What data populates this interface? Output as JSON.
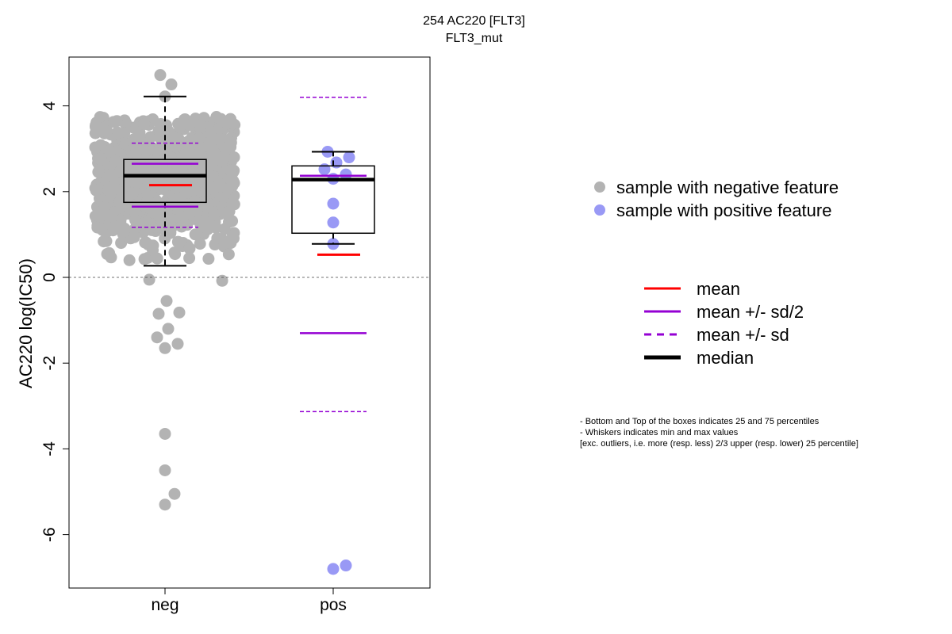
{
  "title": "254 AC220 [FLT3]",
  "subtitle": "FLT3_mut",
  "chart_data": {
    "type": "boxplot",
    "ylabel": "AC220 log(IC50)",
    "xlabel": "",
    "ylim": [
      -7.3,
      5.2
    ],
    "y_ticks": [
      -6,
      -4,
      -2,
      0,
      2,
      4
    ],
    "categories": [
      "neg",
      "pos"
    ],
    "reference_line": 0,
    "groups": [
      {
        "name": "neg",
        "color": "#b3b3b3",
        "box": {
          "q1": 1.75,
          "median": 2.37,
          "q3": 2.75,
          "whisker_low": 0.27,
          "whisker_high": 4.22
        },
        "mean": 2.15,
        "mean_minus_half_sd": 1.65,
        "mean_plus_half_sd": 2.65,
        "mean_minus_sd": 1.17,
        "mean_plus_sd": 3.13,
        "outliers": [
          4.72,
          4.5,
          4.22,
          -0.55,
          -0.85,
          -0.82,
          -1.2,
          -1.4,
          -1.55,
          -1.65,
          -3.65,
          -4.5,
          -5.05,
          -5.3
        ]
      },
      {
        "name": "pos",
        "color": "#9999f5",
        "box": {
          "q1": 1.03,
          "median": 2.28,
          "q3": 2.6,
          "whisker_low": 0.78,
          "whisker_high": 2.93
        },
        "mean": 0.53,
        "mean_minus_half_sd": -1.3,
        "mean_plus_half_sd": 2.37,
        "mean_minus_sd": -3.13,
        "mean_plus_sd": 4.2,
        "points": [
          2.93,
          2.8,
          2.68,
          2.52,
          2.4,
          2.3,
          1.72,
          1.28,
          0.78,
          -6.8,
          -6.72
        ]
      }
    ],
    "legend": {
      "samples": [
        {
          "label": "sample with negative feature",
          "color": "#b3b3b3"
        },
        {
          "label": "sample with positive feature",
          "color": "#9999f5"
        }
      ],
      "lines": [
        {
          "label": "mean",
          "color": "#ff0000",
          "style": "solid"
        },
        {
          "label": "mean +/- sd/2",
          "color": "#9400d3",
          "style": "solid"
        },
        {
          "label": "mean +/- sd",
          "color": "#9400d3",
          "style": "dashed"
        },
        {
          "label": "median",
          "color": "#000000",
          "style": "thick"
        }
      ]
    }
  },
  "footnote": [
    "- Bottom and Top of the boxes indicates 25 and 75 percentiles",
    "- Whiskers indicates min and max values",
    "[exc. outliers, i.e. more (resp. less) 2/3 upper (resp. lower) 25 percentile]"
  ]
}
